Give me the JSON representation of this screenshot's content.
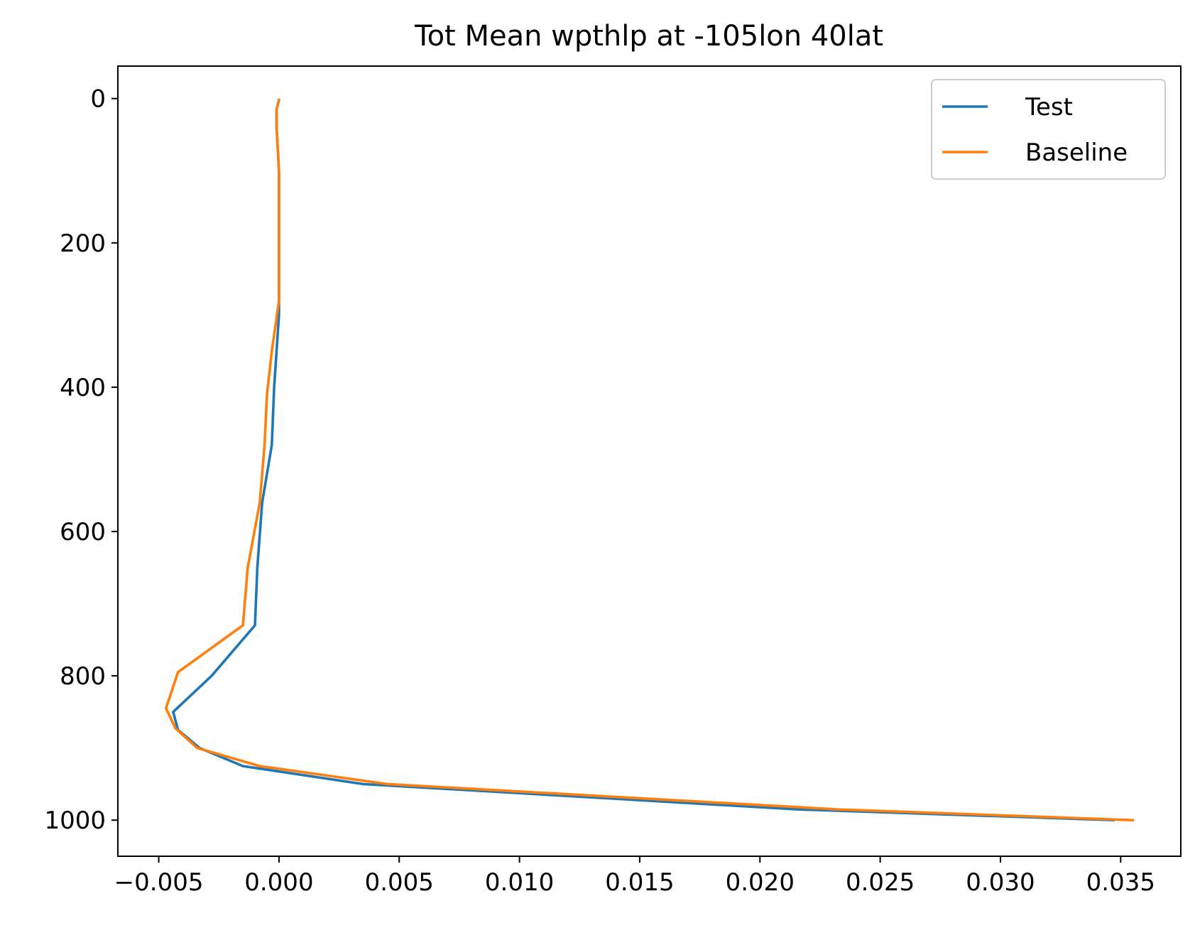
{
  "chart_data": {
    "type": "line",
    "title": "Tot Mean wpthlp at -105lon 40lat",
    "xlabel": "",
    "ylabel": "",
    "xlim": [
      -0.0067,
      0.0375
    ],
    "ylim": [
      1050,
      -45
    ],
    "y_inverted": true,
    "xticks": [
      -0.005,
      0.0,
      0.005,
      0.01,
      0.015,
      0.02,
      0.025,
      0.03,
      0.035
    ],
    "xtick_labels": [
      "−0.005",
      "0.000",
      "0.005",
      "0.010",
      "0.015",
      "0.020",
      "0.025",
      "0.030",
      "0.035"
    ],
    "yticks": [
      0,
      200,
      400,
      600,
      800,
      1000
    ],
    "ytick_labels": [
      "0",
      "200",
      "400",
      "600",
      "800",
      "1000"
    ],
    "grid": false,
    "legend": "top-right",
    "series": [
      {
        "name": "Test",
        "color": "#1f77b4",
        "points": [
          [
            0.0,
            2
          ],
          [
            -0.0001,
            15
          ],
          [
            -0.0001,
            40
          ],
          [
            0.0,
            100
          ],
          [
            0.0,
            200
          ],
          [
            0.0,
            300
          ],
          [
            -0.0002,
            400
          ],
          [
            -0.0003,
            480
          ],
          [
            -0.0007,
            560
          ],
          [
            -0.0009,
            650
          ],
          [
            -0.001,
            730
          ],
          [
            -0.0028,
            800
          ],
          [
            -0.0044,
            850
          ],
          [
            -0.0042,
            875
          ],
          [
            -0.0033,
            900
          ],
          [
            -0.0015,
            925
          ],
          [
            0.0035,
            950
          ],
          [
            0.0215,
            985
          ],
          [
            0.0347,
            1000
          ]
        ]
      },
      {
        "name": "Baseline",
        "color": "#ff7f0e",
        "points": [
          [
            0.0,
            2
          ],
          [
            -0.0001,
            15
          ],
          [
            -0.0001,
            40
          ],
          [
            0.0,
            100
          ],
          [
            0.0,
            200
          ],
          [
            0.0,
            280
          ],
          [
            -0.0003,
            350
          ],
          [
            -0.0005,
            410
          ],
          [
            -0.0006,
            480
          ],
          [
            -0.0008,
            560
          ],
          [
            -0.0013,
            650
          ],
          [
            -0.0015,
            730
          ],
          [
            -0.0042,
            795
          ],
          [
            -0.0047,
            845
          ],
          [
            -0.0043,
            873
          ],
          [
            -0.0034,
            900
          ],
          [
            -0.0008,
            925
          ],
          [
            0.0045,
            950
          ],
          [
            0.0232,
            985
          ],
          [
            0.0355,
            1000
          ]
        ]
      }
    ]
  }
}
